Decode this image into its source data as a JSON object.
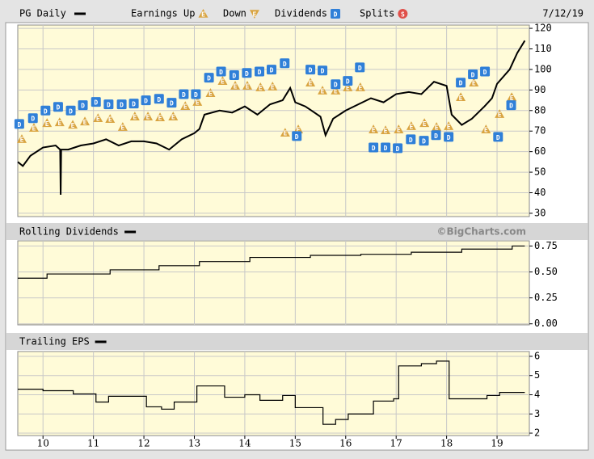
{
  "chart_data": [
    {
      "type": "line",
      "title": "PG Daily",
      "date": "7/12/19",
      "xlim": [
        9.5,
        19.64
      ],
      "ylim": [
        28.4,
        121.6
      ],
      "yticks": [
        120,
        110,
        100,
        90,
        80,
        70,
        60,
        50,
        40,
        30
      ],
      "grid": true,
      "series": [
        {
          "name": "PG Daily",
          "color": "#000000",
          "x": [
            9.5,
            9.6,
            9.75,
            10.0,
            10.25,
            10.34,
            10.35,
            10.36,
            10.5,
            10.75,
            11.0,
            11.25,
            11.5,
            11.75,
            12.0,
            12.25,
            12.5,
            12.75,
            13.0,
            13.1,
            13.2,
            13.5,
            13.75,
            14.0,
            14.25,
            14.5,
            14.75,
            14.9,
            15.0,
            15.2,
            15.5,
            15.6,
            15.75,
            16.0,
            16.25,
            16.5,
            16.75,
            17.0,
            17.25,
            17.5,
            17.75,
            18.0,
            18.1,
            18.3,
            18.5,
            18.75,
            18.9,
            19.0,
            19.25,
            19.4,
            19.55
          ],
          "values": [
            55,
            53,
            58,
            62,
            63,
            61,
            39,
            61,
            61,
            63,
            64,
            66,
            63,
            65,
            65,
            64,
            61,
            66,
            69,
            71,
            78,
            80,
            79,
            82,
            78,
            83,
            85,
            91,
            84,
            82,
            77,
            68,
            76,
            80,
            83,
            86,
            84,
            88,
            89,
            88,
            94,
            92,
            78,
            73,
            76,
            82,
            86,
            93,
            100,
            108,
            114
          ]
        }
      ],
      "markers": [
        {
          "name": "Earnings Up",
          "color": "#d9a441",
          "symbol": "E",
          "x": [
            9.58,
            9.82,
            10.08,
            10.33,
            10.59,
            10.83,
            11.09,
            11.33,
            11.58,
            11.82,
            12.08,
            12.32,
            12.58,
            12.82,
            13.06,
            13.32,
            13.56,
            13.81,
            14.05,
            14.31,
            14.55,
            14.8,
            15.06,
            15.3,
            15.54,
            15.8,
            16.04,
            16.29,
            16.55,
            16.79,
            17.05,
            17.3,
            17.56,
            17.8,
            18.04,
            18.28,
            18.54,
            18.78,
            19.05,
            19.29
          ],
          "values": [
            66.1,
            71.6,
            73.9,
            74.3,
            73.1,
            74.7,
            76.3,
            75.9,
            72.0,
            77.1,
            77.1,
            76.7,
            77.1,
            82.2,
            84.2,
            88.5,
            94.4,
            92.1,
            92.1,
            91.3,
            91.7,
            69.2,
            70.8,
            93.6,
            89.7,
            89.7,
            91.3,
            91.3,
            70.8,
            70.4,
            70.8,
            72.4,
            73.9,
            72.0,
            72.4,
            86.5,
            93.6,
            70.8,
            78.3,
            86.5
          ]
        },
        {
          "name": "Down",
          "color": "#d9a441",
          "symbol": "E",
          "x": [],
          "values": []
        },
        {
          "name": "Dividends",
          "color": "#2f7fd8",
          "symbol": "D",
          "x": [
            9.53,
            9.8,
            10.05,
            10.3,
            10.55,
            10.79,
            11.05,
            11.3,
            11.56,
            11.8,
            12.04,
            12.3,
            12.55,
            12.79,
            13.03,
            13.29,
            13.53,
            13.79,
            14.04,
            14.29,
            14.53,
            14.79,
            15.03,
            15.3,
            15.54,
            15.8,
            16.04,
            16.28,
            16.55,
            16.79,
            17.03,
            17.29,
            17.55,
            17.79,
            18.04,
            18.28,
            18.52,
            18.76,
            19.02,
            19.28
          ],
          "values": [
            73.5,
            76.3,
            80,
            81.8,
            80,
            82.6,
            84.2,
            83,
            83,
            83.4,
            85,
            85.7,
            83.8,
            88,
            88,
            96,
            99,
            97.2,
            98.3,
            99,
            99.9,
            103,
            67.6,
            99.9,
            99.5,
            92.8,
            94.4,
            101,
            62,
            62,
            61.7,
            66,
            65.3,
            68,
            67.2,
            93.6,
            97.6,
            99,
            67.2,
            82.6
          ]
        },
        {
          "name": "Splits",
          "color": "#e0504a",
          "symbol": "S",
          "x": [],
          "values": []
        }
      ]
    },
    {
      "type": "step",
      "title": "Rolling Dividends",
      "copyright": "©BigCharts.com",
      "xlim": [
        9.5,
        19.64
      ],
      "ylim": [
        -0.01,
        0.8
      ],
      "yticks": [
        {
          "value": 0.75,
          "label": "0.75"
        },
        {
          "value": 0.5,
          "label": "0.50"
        },
        {
          "value": 0.25,
          "label": "0.25"
        },
        {
          "value": 0,
          "label": "0.00"
        }
      ],
      "grid": true,
      "series": [
        {
          "name": "Rolling Dividends",
          "color": "#000000",
          "x": [
            9.5,
            10.08,
            11.33,
            12.3,
            13.1,
            14.1,
            15.3,
            16.3,
            17.3,
            18.3,
            19.3,
            19.55
          ],
          "values": [
            0.44,
            0.48,
            0.52,
            0.56,
            0.6,
            0.64,
            0.66,
            0.67,
            0.69,
            0.72,
            0.75,
            0.75
          ]
        }
      ]
    },
    {
      "type": "step",
      "title": "Trailing EPS",
      "xlim": [
        9.5,
        19.64
      ],
      "ylim": [
        1.875,
        6.25
      ],
      "yticks": [
        6,
        5,
        4,
        3,
        2
      ],
      "xticks": [
        10,
        11,
        12,
        13,
        14,
        15,
        16,
        17,
        18,
        19
      ],
      "grid": true,
      "series": [
        {
          "name": "Trailing EPS",
          "color": "#000000",
          "x": [
            9.5,
            10.0,
            10.6,
            11.05,
            11.3,
            12.05,
            12.35,
            12.6,
            13.05,
            13.6,
            14.0,
            14.3,
            14.75,
            15.0,
            15.55,
            15.8,
            16.05,
            16.55,
            16.95,
            17.05,
            17.5,
            17.8,
            18.05,
            18.8,
            19.05,
            19.55
          ],
          "values": [
            4.29,
            4.21,
            4.04,
            3.62,
            3.92,
            3.37,
            3.25,
            3.62,
            4.46,
            3.87,
            4.0,
            3.71,
            3.96,
            3.33,
            2.46,
            2.71,
            3.0,
            3.67,
            3.79,
            5.5,
            5.62,
            5.75,
            3.79,
            3.96,
            4.12,
            4.12
          ]
        }
      ]
    }
  ]
}
